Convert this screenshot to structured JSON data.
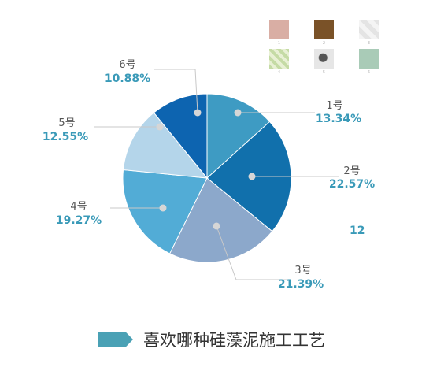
{
  "chart_data": {
    "type": "pie",
    "title": "",
    "categories": [
      "1号",
      "2号",
      "3号",
      "4号",
      "5号",
      "6号"
    ],
    "values": [
      13.34,
      22.57,
      21.39,
      19.27,
      12.55,
      10.88
    ],
    "value_labels": [
      "13.34%",
      "22.57%",
      "21.39%",
      "19.27%",
      "12.55%",
      "10.88%"
    ],
    "colors": [
      "#3e9bc3",
      "#1170ac",
      "#8ca8cb",
      "#52acd6",
      "#b4d5ea",
      "#0d64b0"
    ],
    "start_angle_deg": 0,
    "direction": "clockwise"
  },
  "swatches": {
    "colors": [
      "#d9aea4",
      "#7a5228",
      "#f0f0f0",
      "#c5dba5",
      "#dcdcdc",
      "#a9cbb7"
    ],
    "numbers": [
      "1",
      "2",
      "3",
      "4",
      "5",
      "6"
    ]
  },
  "stray_label": "12",
  "legend": {
    "text": "喜欢哪种硅藻泥施工工艺",
    "color": "#4aa1b5"
  }
}
